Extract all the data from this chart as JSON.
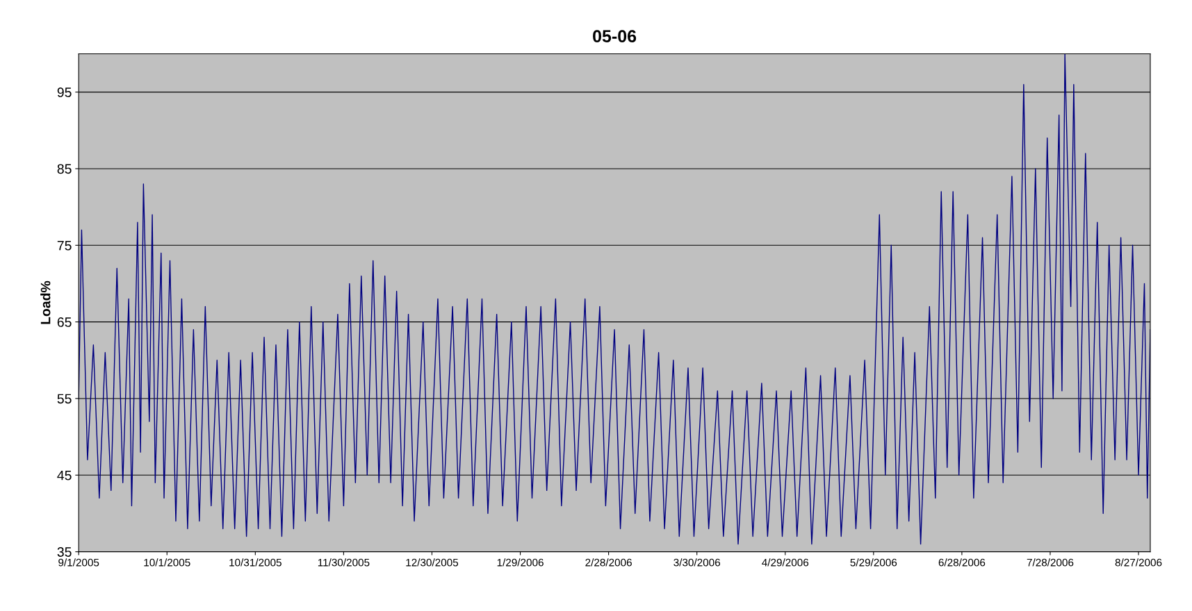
{
  "chart_data": {
    "type": "line",
    "title": "05-06",
    "ylabel": "Load%",
    "xlim": [
      "2005-09-01",
      "2006-08-31"
    ],
    "ylim": [
      35,
      100
    ],
    "xticks": [
      {
        "value": "2005-09-01",
        "label": "9/1/2005"
      },
      {
        "value": "2005-10-01",
        "label": "10/1/2005"
      },
      {
        "value": "2005-10-31",
        "label": "10/31/2005"
      },
      {
        "value": "2005-11-30",
        "label": "11/30/2005"
      },
      {
        "value": "2005-12-30",
        "label": "12/30/2005"
      },
      {
        "value": "2006-01-29",
        "label": "1/29/2006"
      },
      {
        "value": "2006-02-28",
        "label": "2/28/2006"
      },
      {
        "value": "2006-03-30",
        "label": "3/30/2006"
      },
      {
        "value": "2006-04-29",
        "label": "4/29/2006"
      },
      {
        "value": "2006-05-29",
        "label": "5/29/2006"
      },
      {
        "value": "2006-06-28",
        "label": "6/28/2006"
      },
      {
        "value": "2006-07-28",
        "label": "7/28/2006"
      },
      {
        "value": "2006-08-27",
        "label": "8/27/2006"
      }
    ],
    "yticks": [
      35,
      45,
      55,
      65,
      75,
      85,
      95
    ],
    "grid": "y",
    "marker": "none",
    "line_style": "solid",
    "series": [
      {
        "color": "#000080",
        "x": [
          "2005-09-01",
          "2005-09-02",
          "2005-09-04",
          "2005-09-06",
          "2005-09-08",
          "2005-09-10",
          "2005-09-12",
          "2005-09-14",
          "2005-09-16",
          "2005-09-18",
          "2005-09-19",
          "2005-09-21",
          "2005-09-22",
          "2005-09-23",
          "2005-09-25",
          "2005-09-26",
          "2005-09-27",
          "2005-09-29",
          "2005-09-30",
          "2005-10-02",
          "2005-10-04",
          "2005-10-06",
          "2005-10-08",
          "2005-10-10",
          "2005-10-12",
          "2005-10-14",
          "2005-10-16",
          "2005-10-18",
          "2005-10-20",
          "2005-10-22",
          "2005-10-24",
          "2005-10-26",
          "2005-10-28",
          "2005-10-30",
          "2005-11-01",
          "2005-11-03",
          "2005-11-05",
          "2005-11-07",
          "2005-11-09",
          "2005-11-11",
          "2005-11-13",
          "2005-11-15",
          "2005-11-17",
          "2005-11-19",
          "2005-11-21",
          "2005-11-23",
          "2005-11-25",
          "2005-11-28",
          "2005-11-30",
          "2005-12-02",
          "2005-12-04",
          "2005-12-06",
          "2005-12-08",
          "2005-12-10",
          "2005-12-12",
          "2005-12-14",
          "2005-12-16",
          "2005-12-18",
          "2005-12-20",
          "2005-12-22",
          "2005-12-24",
          "2005-12-27",
          "2005-12-29",
          "2006-01-01",
          "2006-01-03",
          "2006-01-06",
          "2006-01-08",
          "2006-01-11",
          "2006-01-13",
          "2006-01-16",
          "2006-01-18",
          "2006-01-21",
          "2006-01-23",
          "2006-01-26",
          "2006-01-28",
          "2006-01-31",
          "2006-02-02",
          "2006-02-05",
          "2006-02-07",
          "2006-02-10",
          "2006-02-12",
          "2006-02-15",
          "2006-02-17",
          "2006-02-20",
          "2006-02-22",
          "2006-02-25",
          "2006-02-27",
          "2006-03-02",
          "2006-03-04",
          "2006-03-07",
          "2006-03-09",
          "2006-03-12",
          "2006-03-14",
          "2006-03-17",
          "2006-03-19",
          "2006-03-22",
          "2006-03-24",
          "2006-03-27",
          "2006-03-29",
          "2006-04-01",
          "2006-04-03",
          "2006-04-06",
          "2006-04-08",
          "2006-04-11",
          "2006-04-13",
          "2006-04-16",
          "2006-04-18",
          "2006-04-21",
          "2006-04-23",
          "2006-04-26",
          "2006-04-28",
          "2006-05-01",
          "2006-05-03",
          "2006-05-06",
          "2006-05-08",
          "2006-05-11",
          "2006-05-13",
          "2006-05-16",
          "2006-05-18",
          "2006-05-21",
          "2006-05-23",
          "2006-05-26",
          "2006-05-28",
          "2006-05-31",
          "2006-06-02",
          "2006-06-04",
          "2006-06-06",
          "2006-06-08",
          "2006-06-10",
          "2006-06-12",
          "2006-06-14",
          "2006-06-17",
          "2006-06-19",
          "2006-06-21",
          "2006-06-23",
          "2006-06-25",
          "2006-06-27",
          "2006-06-30",
          "2006-07-02",
          "2006-07-05",
          "2006-07-07",
          "2006-07-10",
          "2006-07-12",
          "2006-07-15",
          "2006-07-17",
          "2006-07-19",
          "2006-07-21",
          "2006-07-23",
          "2006-07-25",
          "2006-07-27",
          "2006-07-29",
          "2006-07-31",
          "2006-08-01",
          "2006-08-02",
          "2006-08-04",
          "2006-08-05",
          "2006-08-07",
          "2006-08-09",
          "2006-08-11",
          "2006-08-13",
          "2006-08-15",
          "2006-08-17",
          "2006-08-19",
          "2006-08-21",
          "2006-08-23",
          "2006-08-25",
          "2006-08-27",
          "2006-08-29",
          "2006-08-30",
          "2006-08-31"
        ],
        "values": [
          55,
          77,
          47,
          62,
          42,
          61,
          43,
          72,
          44,
          68,
          41,
          78,
          48,
          83,
          52,
          79,
          44,
          74,
          42,
          73,
          39,
          68,
          38,
          64,
          39,
          67,
          41,
          60,
          38,
          61,
          38,
          60,
          37,
          61,
          38,
          63,
          38,
          62,
          37,
          64,
          38,
          65,
          39,
          67,
          40,
          65,
          39,
          66,
          41,
          70,
          44,
          71,
          45,
          73,
          44,
          71,
          44,
          69,
          41,
          66,
          39,
          65,
          41,
          68,
          42,
          67,
          42,
          68,
          41,
          68,
          40,
          66,
          41,
          65,
          39,
          67,
          42,
          67,
          43,
          68,
          41,
          65,
          43,
          68,
          44,
          67,
          41,
          64,
          38,
          62,
          40,
          64,
          39,
          61,
          38,
          60,
          37,
          59,
          37,
          59,
          38,
          56,
          37,
          56,
          36,
          56,
          37,
          57,
          37,
          56,
          37,
          56,
          37,
          59,
          36,
          58,
          37,
          59,
          37,
          58,
          38,
          60,
          38,
          79,
          45,
          75,
          38,
          63,
          39,
          61,
          36,
          67,
          42,
          82,
          46,
          82,
          45,
          79,
          42,
          76,
          44,
          79,
          44,
          84,
          48,
          96,
          52,
          85,
          46,
          89,
          55,
          92,
          56,
          100,
          67,
          96,
          48,
          87,
          47,
          78,
          40,
          75,
          47,
          76,
          47,
          75,
          45,
          70,
          42,
          64
        ]
      }
    ]
  }
}
